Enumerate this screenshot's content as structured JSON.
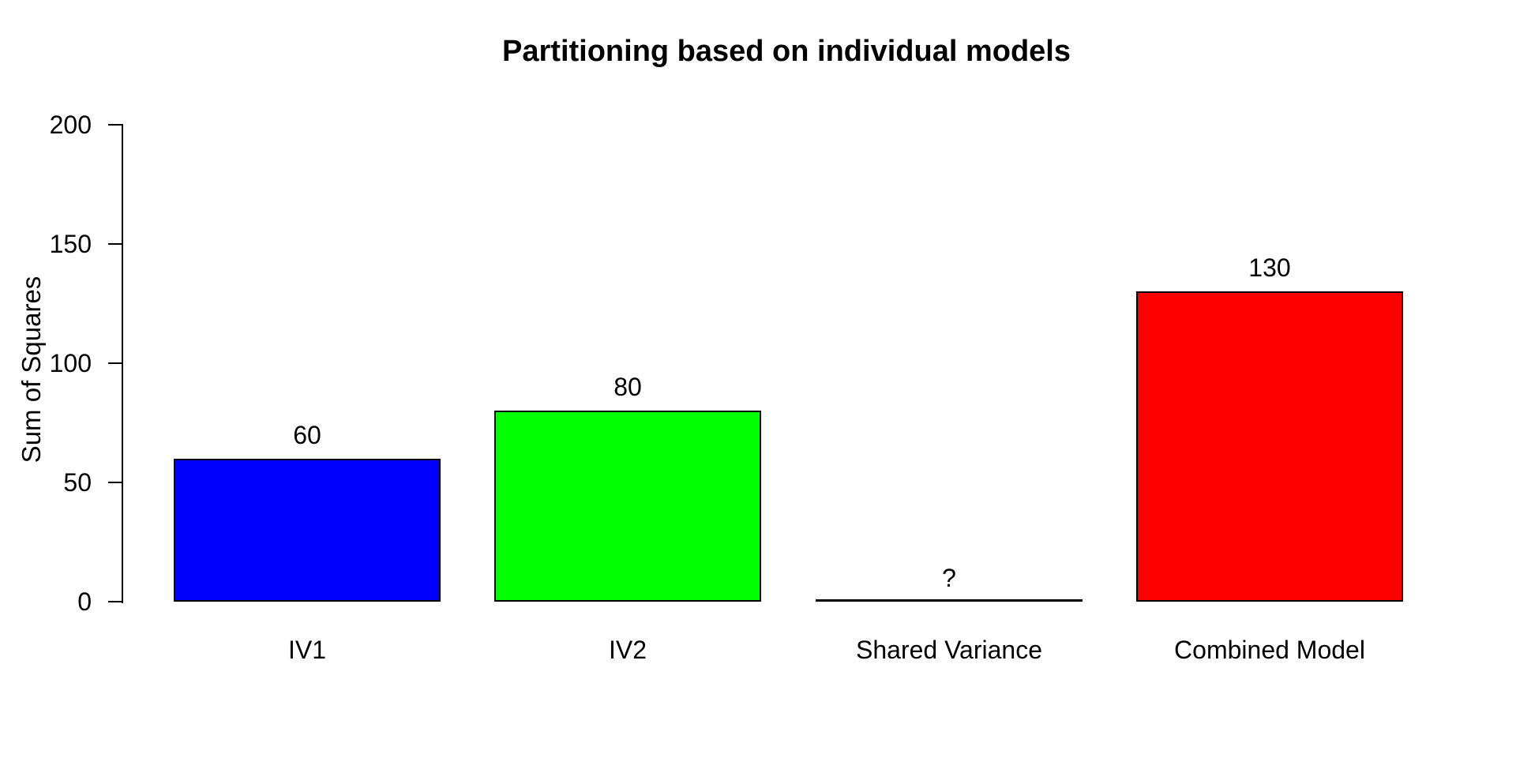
{
  "page": {
    "background_color": "#FFFFFF",
    "text_color": "#000000",
    "axis_color": "#000000"
  },
  "chart_data": {
    "type": "bar",
    "title": "Partitioning based on individual models",
    "xlabel": "",
    "ylabel": "Sum of Squares",
    "categories": [
      "IV1",
      "IV2",
      "Shared Variance",
      "Combined Model"
    ],
    "values": [
      60,
      80,
      0,
      130
    ],
    "value_labels": [
      "60",
      "80",
      "?",
      "130"
    ],
    "bar_colors": [
      "#0000FF",
      "#00FF00",
      "#FFFFFF",
      "#FF0000"
    ],
    "bar_border_color": "#000000",
    "yticks": [
      0,
      50,
      100,
      150,
      200
    ],
    "ytick_labels": [
      "0",
      "50",
      "100",
      "150",
      "200"
    ],
    "ylim": [
      0,
      200
    ],
    "grid": false,
    "legend": null
  }
}
